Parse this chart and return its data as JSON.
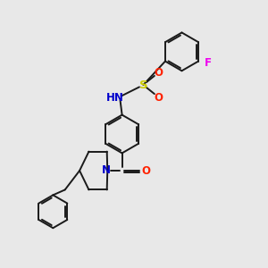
{
  "background_color": "#e8e8e8",
  "bond_color": "#1a1a1a",
  "atom_colors": {
    "N": "#0000cc",
    "O": "#ff2200",
    "S": "#cccc00",
    "F": "#ee00ee",
    "H": "#4a9a9a",
    "C": "#1a1a1a"
  },
  "figsize": [
    3.0,
    3.0
  ],
  "dpi": 100
}
